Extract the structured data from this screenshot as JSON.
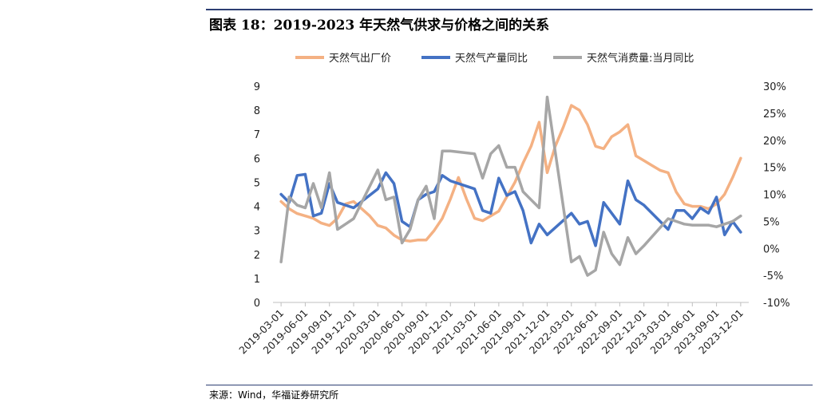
{
  "title": "图表 18：2019-2023 年天然气供求与价格之间的关系",
  "source": "来源：Wind，华福证券研究所",
  "colors": {
    "price": "#f4b183",
    "production": "#4472c4",
    "consumption": "#a6a6a6"
  },
  "chart_data": {
    "type": "line",
    "title": "",
    "legend_position": "top",
    "x_ticks": [
      "2019-03-01",
      "2019-06-01",
      "2019-09-01",
      "2019-12-01",
      "2020-03-01",
      "2020-06-01",
      "2020-09-01",
      "2020-12-01",
      "2021-03-01",
      "2021-06-01",
      "2021-09-01",
      "2021-12-01",
      "2022-03-01",
      "2022-06-01",
      "2022-09-01",
      "2022-12-01",
      "2023-03-01",
      "2023-06-01",
      "2023-09-01",
      "2023-12-01"
    ],
    "y_left": {
      "min": 0,
      "max": 9,
      "ticks": [
        "0",
        "1",
        "2",
        "3",
        "4",
        "5",
        "6",
        "7",
        "8",
        "9"
      ]
    },
    "y_right": {
      "min": -10,
      "max": 30,
      "ticks": [
        "-10%",
        "-5%",
        "0%",
        "5%",
        "10%",
        "15%",
        "20%",
        "25%",
        "30%"
      ]
    },
    "grid": false,
    "series": [
      {
        "name": "天然气出厂价",
        "axis": "left",
        "color": "#f4b183",
        "x": [
          "2019-03-01",
          "2019-04-01",
          "2019-05-01",
          "2019-06-01",
          "2019-07-01",
          "2019-08-01",
          "2019-09-01",
          "2019-10-01",
          "2019-11-01",
          "2019-12-01",
          "2020-01-01",
          "2020-02-01",
          "2020-03-01",
          "2020-04-01",
          "2020-05-01",
          "2020-06-01",
          "2020-07-01",
          "2020-08-01",
          "2020-09-01",
          "2020-10-01",
          "2020-11-01",
          "2020-12-01",
          "2021-01-01",
          "2021-02-01",
          "2021-03-01",
          "2021-04-01",
          "2021-05-01",
          "2021-06-01",
          "2021-07-01",
          "2021-08-01",
          "2021-09-01",
          "2021-10-01",
          "2021-11-01",
          "2021-12-01",
          "2022-01-01",
          "2022-02-01",
          "2022-03-01",
          "2022-04-01",
          "2022-05-01",
          "2022-06-01",
          "2022-07-01",
          "2022-08-01",
          "2022-09-01",
          "2022-10-01",
          "2022-11-01",
          "2022-12-01",
          "2023-01-01",
          "2023-02-01",
          "2023-03-01",
          "2023-04-01",
          "2023-05-01",
          "2023-06-01",
          "2023-07-01",
          "2023-08-01",
          "2023-09-01",
          "2023-10-01",
          "2023-11-01",
          "2023-12-01"
        ],
        "y": [
          4.2,
          3.9,
          3.7,
          3.6,
          3.5,
          3.3,
          3.2,
          3.5,
          4.1,
          4.2,
          3.9,
          3.6,
          3.2,
          3.1,
          2.8,
          2.6,
          2.55,
          2.6,
          2.6,
          3.0,
          3.5,
          4.3,
          5.2,
          4.3,
          3.5,
          3.4,
          3.6,
          3.8,
          4.4,
          5.0,
          5.8,
          6.5,
          7.5,
          5.4,
          6.5,
          7.3,
          8.2,
          8.0,
          7.4,
          6.5,
          6.4,
          6.9,
          7.1,
          7.4,
          6.1,
          5.9,
          5.7,
          5.5,
          5.4,
          4.6,
          4.1,
          4.0,
          4.0,
          3.9,
          4.1,
          4.5,
          5.2,
          6.0
        ]
      },
      {
        "name": "天然气产量同比",
        "axis": "right",
        "color": "#4472c4",
        "x": [
          "2019-03-01",
          "2019-04-01",
          "2019-05-01",
          "2019-06-01",
          "2019-07-01",
          "2019-08-01",
          "2019-09-01",
          "2019-10-01",
          "2019-11-01",
          "2019-12-01",
          "2020-03-01",
          "2020-04-01",
          "2020-05-01",
          "2020-06-01",
          "2020-07-01",
          "2020-08-01",
          "2020-09-01",
          "2020-10-01",
          "2020-11-01",
          "2020-12-01",
          "2021-03-01",
          "2021-04-01",
          "2021-05-01",
          "2021-06-01",
          "2021-07-01",
          "2021-08-01",
          "2021-09-01",
          "2021-10-01",
          "2021-11-01",
          "2021-12-01",
          "2022-03-01",
          "2022-04-01",
          "2022-05-01",
          "2022-06-01",
          "2022-07-01",
          "2022-08-01",
          "2022-09-01",
          "2022-10-01",
          "2022-11-01",
          "2022-12-01",
          "2023-03-01",
          "2023-04-01",
          "2023-05-01",
          "2023-06-01",
          "2023-07-01",
          "2023-08-01",
          "2023-09-01",
          "2023-10-01",
          "2023-11-01",
          "2023-12-01"
        ],
        "y": [
          10,
          8.5,
          13.5,
          13.7,
          6,
          6.5,
          12,
          8.5,
          8,
          7.5,
          11,
          14,
          12,
          5,
          4,
          9,
          10,
          10.5,
          13.5,
          12.5,
          11,
          7,
          6.5,
          13,
          9.8,
          10.5,
          7,
          1,
          4.5,
          2.5,
          6.5,
          4.5,
          5,
          0.5,
          8.5,
          6.5,
          4.5,
          12.5,
          9,
          8,
          3.5,
          7,
          7,
          5.5,
          7.5,
          6.5,
          9.5,
          2.5,
          5,
          3
        ]
      },
      {
        "name": "天然气消费量:当月同比",
        "axis": "right",
        "color": "#a6a6a6",
        "x": [
          "2019-03-01",
          "2019-04-01",
          "2019-05-01",
          "2019-06-01",
          "2019-07-01",
          "2019-08-01",
          "2019-09-01",
          "2019-10-01",
          "2019-11-01",
          "2019-12-01",
          "2020-03-01",
          "2020-04-01",
          "2020-05-01",
          "2020-06-01",
          "2020-07-01",
          "2020-08-01",
          "2020-09-01",
          "2020-10-01",
          "2020-11-01",
          "2020-12-01",
          "2021-03-01",
          "2021-04-01",
          "2021-05-01",
          "2021-06-01",
          "2021-07-01",
          "2021-08-01",
          "2021-09-01",
          "2021-10-01",
          "2021-11-01",
          "2021-12-01",
          "2022-03-01",
          "2022-04-01",
          "2022-05-01",
          "2022-06-01",
          "2022-07-01",
          "2022-08-01",
          "2022-09-01",
          "2022-10-01",
          "2022-11-01",
          "2022-12-01",
          "2023-03-01",
          "2023-04-01",
          "2023-05-01",
          "2023-06-01",
          "2023-07-01",
          "2023-08-01",
          "2023-09-01",
          "2023-10-01",
          "2023-11-01",
          "2023-12-01"
        ],
        "y": [
          -2.5,
          9.5,
          8,
          7.5,
          12,
          7.5,
          14,
          3.5,
          4.5,
          5.5,
          14.5,
          9,
          9.5,
          1,
          3.5,
          9,
          11.5,
          5.5,
          18,
          18,
          17.5,
          13,
          17.5,
          19,
          15,
          15,
          10.5,
          9,
          7.5,
          28,
          -2.5,
          -1.5,
          -5,
          -4,
          3,
          -1,
          -3,
          2,
          -1,
          0.5,
          5.5,
          5,
          4.5,
          4.3,
          4.3,
          4.3,
          4,
          4.5,
          5,
          6
        ]
      }
    ]
  }
}
